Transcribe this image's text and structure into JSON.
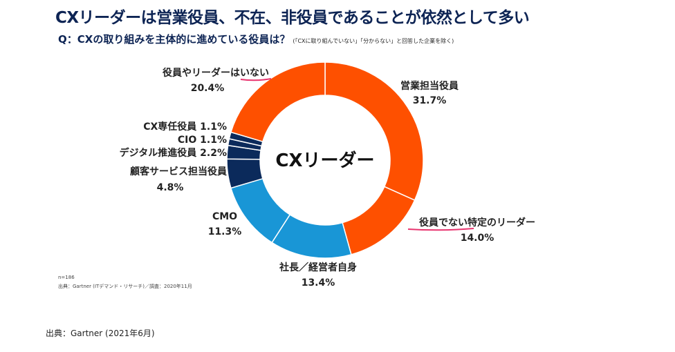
{
  "title": "CXリーダーは営業役員、不在、非役員であることが依然として多い",
  "question": "Q：CXの取り組みを主体的に進めている役員は？",
  "question_note": "(「CXに取り組んでいない」「分からない」と回答した企業を除く)",
  "center_label": "CXリーダー",
  "sample_size": "n=186",
  "inner_source": "出典：Gartner (ITデマンド・リサーチ)／調査：2020年11月",
  "footer_source": "出典：Gartner (2021年6月)",
  "colors": {
    "orange": "#fe5000",
    "blue": "#1996d6",
    "navy": "#0b2a5b",
    "title": "#0d2454",
    "underline": "#e8336e"
  },
  "chart_data": {
    "type": "pie",
    "style": "donut",
    "center_text": "CXリーダー",
    "slices": [
      {
        "label": "営業担当役員",
        "value": 31.7,
        "value_text": "31.7%",
        "color": "#fe5000"
      },
      {
        "label": "役員でない特定のリーダー",
        "value": 14.0,
        "value_text": "14.0%",
        "color": "#fe5000"
      },
      {
        "label": "社長／経営者自身",
        "value": 13.4,
        "value_text": "13.4%",
        "color": "#1996d6"
      },
      {
        "label": "CMO",
        "value": 11.3,
        "value_text": "11.3%",
        "color": "#1996d6"
      },
      {
        "label": "顧客サービス担当役員",
        "value": 4.8,
        "value_text": "4.8%",
        "color": "#0b2a5b"
      },
      {
        "label": "デジタル推進役員",
        "value": 2.2,
        "value_text": "2.2%",
        "color": "#0b2a5b"
      },
      {
        "label": "CIO",
        "value": 1.1,
        "value_text": "1.1%",
        "color": "#0b2a5b"
      },
      {
        "label": "CX専任役員",
        "value": 1.1,
        "value_text": "1.1%",
        "color": "#0b2a5b"
      },
      {
        "label": "役員やリーダーはいない",
        "value": 20.4,
        "value_text": "20.4%",
        "color": "#fe5000"
      }
    ]
  }
}
